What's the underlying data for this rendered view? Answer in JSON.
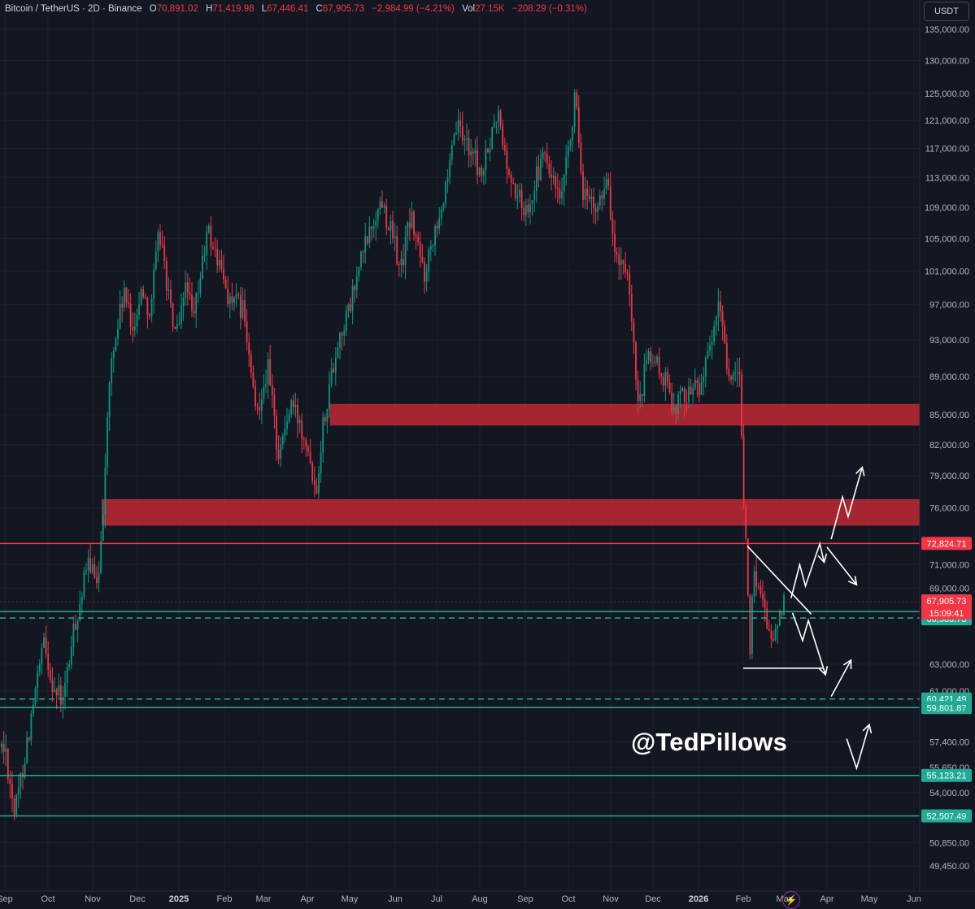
{
  "header": {
    "symbol": "Bitcoin / TetherUS · 2D · Binance",
    "open_label": "O",
    "open": "70,891.02",
    "high_label": "H",
    "high": "71,419.98",
    "low_label": "L",
    "low": "67,446.41",
    "close_label": "C",
    "close": "67,905.73",
    "change": "−2,984.99 (−4.21%)",
    "vol_label": "Vol",
    "vol": "27.15K",
    "vol_change": "−208.29 (−0.31%)"
  },
  "currency": "USDT",
  "watermark": "@TedPillows",
  "colors": {
    "background": "#131722",
    "up": "#089981",
    "down": "#f23645",
    "zone": "#b22833",
    "support": "#22ab94",
    "resistance": "#f23645"
  },
  "icons": {
    "bolt": "lightning-icon"
  },
  "chart_data": {
    "type": "candlestick",
    "timeframe": "2D",
    "y_axis": {
      "scale": "log",
      "ticks": [
        {
          "value": 135000,
          "label": "135,000.00"
        },
        {
          "value": 130000,
          "label": "130,000.00"
        },
        {
          "value": 125000,
          "label": "125,000.00"
        },
        {
          "value": 121000,
          "label": "121,000.00"
        },
        {
          "value": 117000,
          "label": "117,000.00"
        },
        {
          "value": 113000,
          "label": "113,000.00"
        },
        {
          "value": 109000,
          "label": "109,000.00"
        },
        {
          "value": 105000,
          "label": "105,000.00"
        },
        {
          "value": 101000,
          "label": "101,000.00"
        },
        {
          "value": 97000,
          "label": "97,000.00"
        },
        {
          "value": 93000,
          "label": "93,000.00"
        },
        {
          "value": 89000,
          "label": "89,000.00"
        },
        {
          "value": 85000,
          "label": "85,000.00"
        },
        {
          "value": 82000,
          "label": "82,000.00"
        },
        {
          "value": 79000,
          "label": "79,000.00"
        },
        {
          "value": 76000,
          "label": "76,000.00"
        },
        {
          "value": 71000,
          "label": "71,000.00"
        },
        {
          "value": 69000,
          "label": "69,000.00"
        },
        {
          "value": 63000,
          "label": "63,000.00"
        },
        {
          "value": 61000,
          "label": "61,000.00"
        },
        {
          "value": 57400,
          "label": "57,400.00"
        },
        {
          "value": 55650,
          "label": "55,650.00"
        },
        {
          "value": 54000,
          "label": "54,000.00"
        },
        {
          "value": 50850,
          "label": "50,850.00"
        },
        {
          "value": 49450,
          "label": "49,450.00"
        }
      ]
    },
    "x_axis": {
      "labels": [
        "Sep",
        "Oct",
        "Nov",
        "Dec",
        "2025",
        "Feb",
        "Mar",
        "Apr",
        "May",
        "Jun",
        "Jul",
        "Aug",
        "Sep",
        "Oct",
        "Nov",
        "Dec",
        "2026",
        "Feb",
        "Mar",
        "Apr",
        "May",
        "Jun"
      ],
      "bold": [
        "2025",
        "2026"
      ]
    },
    "price_path": [
      [
        "2024-09-01",
        57000
      ],
      [
        "2024-09-08",
        52600
      ],
      [
        "2024-09-14",
        56000
      ],
      [
        "2024-09-21",
        60000
      ],
      [
        "2024-09-28",
        64500
      ],
      [
        "2024-10-05",
        61200
      ],
      [
        "2024-10-11",
        60200
      ],
      [
        "2024-10-19",
        66000
      ],
      [
        "2024-10-29",
        71500
      ],
      [
        "2024-11-04",
        68500
      ],
      [
        "2024-11-08",
        76500
      ],
      [
        "2024-11-13",
        90000
      ],
      [
        "2024-11-22",
        98500
      ],
      [
        "2024-11-27",
        94000
      ],
      [
        "2024-12-05",
        99000
      ],
      [
        "2024-12-10",
        96000
      ],
      [
        "2024-12-17",
        106000
      ],
      [
        "2024-12-26",
        95000
      ],
      [
        "2024-12-31",
        93500
      ],
      [
        "2025-01-06",
        100500
      ],
      [
        "2025-01-10",
        94500
      ],
      [
        "2025-01-20",
        106000
      ],
      [
        "2025-01-27",
        102000
      ],
      [
        "2025-02-05",
        97500
      ],
      [
        "2025-02-15",
        96500
      ],
      [
        "2025-02-25",
        85000
      ],
      [
        "2025-03-04",
        90000
      ],
      [
        "2025-03-11",
        81000
      ],
      [
        "2025-03-20",
        86000
      ],
      [
        "2025-03-31",
        82500
      ],
      [
        "2025-04-07",
        77500
      ],
      [
        "2025-04-12",
        84000
      ],
      [
        "2025-04-22",
        92500
      ],
      [
        "2025-05-01",
        96500
      ],
      [
        "2025-05-10",
        103500
      ],
      [
        "2025-05-22",
        110000
      ],
      [
        "2025-05-31",
        104000
      ],
      [
        "2025-06-05",
        101000
      ],
      [
        "2025-06-12",
        108000
      ],
      [
        "2025-06-22",
        100500
      ],
      [
        "2025-06-30",
        107000
      ],
      [
        "2025-07-09",
        112000
      ],
      [
        "2025-07-14",
        120000
      ],
      [
        "2025-07-25",
        117000
      ],
      [
        "2025-08-02",
        113000
      ],
      [
        "2025-08-13",
        122000
      ],
      [
        "2025-08-20",
        113000
      ],
      [
        "2025-09-01",
        108500
      ],
      [
        "2025-09-14",
        116000
      ],
      [
        "2025-09-26",
        109000
      ],
      [
        "2025-10-06",
        124500
      ],
      [
        "2025-10-10",
        112000
      ],
      [
        "2025-10-20",
        108000
      ],
      [
        "2025-10-28",
        113500
      ],
      [
        "2025-11-04",
        103000
      ],
      [
        "2025-11-13",
        99500
      ],
      [
        "2025-11-21",
        85000
      ],
      [
        "2025-11-27",
        91500
      ],
      [
        "2025-12-06",
        89500
      ],
      [
        "2025-12-15",
        86000
      ],
      [
        "2025-12-23",
        87500
      ],
      [
        "2025-12-31",
        88000
      ],
      [
        "2026-01-08",
        91000
      ],
      [
        "2026-01-15",
        97000
      ],
      [
        "2026-01-21",
        89500
      ],
      [
        "2026-01-29",
        88000
      ],
      [
        "2026-02-01",
        78500
      ],
      [
        "2026-02-06",
        62800
      ],
      [
        "2026-02-08",
        70500
      ],
      [
        "2026-02-15",
        68500
      ],
      [
        "2026-02-22",
        64500
      ],
      [
        "2026-03-01",
        68000
      ],
      [
        "2026-03-04",
        71400
      ],
      [
        "2026-03-06",
        67905.73
      ]
    ],
    "last_candle": {
      "open": 70891.02,
      "high": 71419.98,
      "low": 67446.41,
      "close": 67905.73,
      "change": -2984.99,
      "change_pct": -4.21,
      "volume": "27.15K"
    },
    "zones": [
      {
        "type": "resistance-zone",
        "from": 83900,
        "to": 86100,
        "start": "2025-04-17",
        "end": "right-edge"
      },
      {
        "type": "resistance-zone",
        "from": 74400,
        "to": 76800,
        "start": "2024-11-07",
        "end": "right-edge"
      }
    ],
    "levels": [
      {
        "value": 72824.71,
        "label": "72,824.71",
        "color": "red",
        "style": "solid"
      },
      {
        "value": 67103.71,
        "label": "67,103.71",
        "color": "green",
        "style": "solid"
      },
      {
        "value": 66586.73,
        "label": "66,586.73",
        "color": "green",
        "style": "dashed"
      },
      {
        "value": 60421.49,
        "label": "60,421.49",
        "color": "green",
        "style": "dashed"
      },
      {
        "value": 59801.87,
        "label": "59,801.87",
        "color": "green",
        "style": "solid"
      },
      {
        "value": 55123.21,
        "label": "55,123.21",
        "color": "green",
        "style": "solid"
      },
      {
        "value": 52507.49,
        "label": "52,507.49",
        "color": "green",
        "style": "solid"
      }
    ],
    "current_price": {
      "value": 67905.73,
      "label": "67,905.73",
      "countdown": "15:09:41"
    },
    "annotations": [
      {
        "type": "trendline",
        "from": [
          "2026-02-04",
          72600
        ],
        "to": [
          "2026-03-20",
          66900
        ]
      },
      {
        "type": "horizontal-segment",
        "from": [
          "2026-01-31",
          62700
        ],
        "to": [
          "2026-03-28",
          62700
        ]
      },
      {
        "type": "scenario-arrow",
        "direction": "up",
        "points": [
          [
            "2026-03-06",
            68200
          ],
          [
            "2026-03-12",
            71000
          ],
          [
            "2026-03-16",
            69200
          ],
          [
            "2026-03-26",
            72800
          ],
          [
            "2026-03-29",
            71200
          ]
        ]
      },
      {
        "type": "scenario-arrow",
        "direction": "down",
        "points": [
          [
            "2026-03-31",
            72500
          ],
          [
            "2026-04-22",
            69300
          ]
        ]
      },
      {
        "type": "scenario-arrow",
        "direction": "up",
        "points": [
          [
            "2026-04-04",
            73200
          ],
          [
            "2026-04-12",
            77000
          ],
          [
            "2026-04-16",
            75200
          ],
          [
            "2026-04-26",
            79800
          ]
        ]
      },
      {
        "type": "scenario-arrow",
        "direction": "down",
        "points": [
          [
            "2026-03-07",
            67000
          ],
          [
            "2026-03-14",
            64800
          ],
          [
            "2026-03-18",
            66400
          ],
          [
            "2026-03-30",
            62200
          ]
        ]
      },
      {
        "type": "scenario-arrow",
        "direction": "up",
        "points": [
          [
            "2026-04-04",
            60600
          ],
          [
            "2026-04-18",
            63300
          ]
        ]
      },
      {
        "type": "scenario-arrow",
        "direction": "up",
        "points": [
          [
            "2026-04-15",
            57600
          ],
          [
            "2026-04-22",
            55600
          ],
          [
            "2026-04-31",
            58600
          ]
        ]
      }
    ]
  }
}
